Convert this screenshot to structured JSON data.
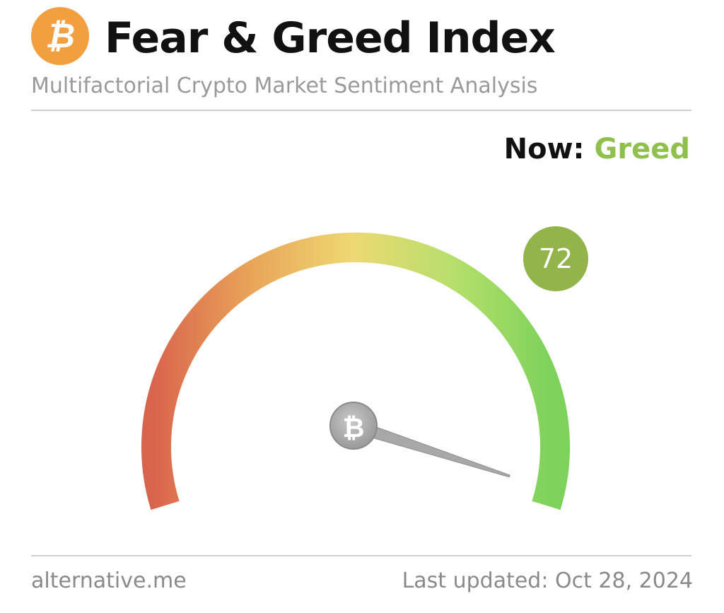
{
  "header": {
    "title": "Fear & Greed Index",
    "subtitle": "Multifactorial Crypto Market Sentiment Analysis",
    "logo_icon": "bitcoin-icon",
    "logo_color": "#f2a03f"
  },
  "status": {
    "now_label": "Now:",
    "now_value": "Greed",
    "now_color": "#8fc04c"
  },
  "gauge": {
    "value": "72",
    "min": 0,
    "max": 100,
    "badge_color": "#93b44a",
    "center_icon": "bitcoin-icon",
    "gradient_colors": [
      "#d9644e",
      "#e9a558",
      "#eed873",
      "#b7df6c",
      "#7cd25a"
    ]
  },
  "footer": {
    "source": "alternative.me",
    "last_updated": "Last updated: Oct 28, 2024"
  }
}
